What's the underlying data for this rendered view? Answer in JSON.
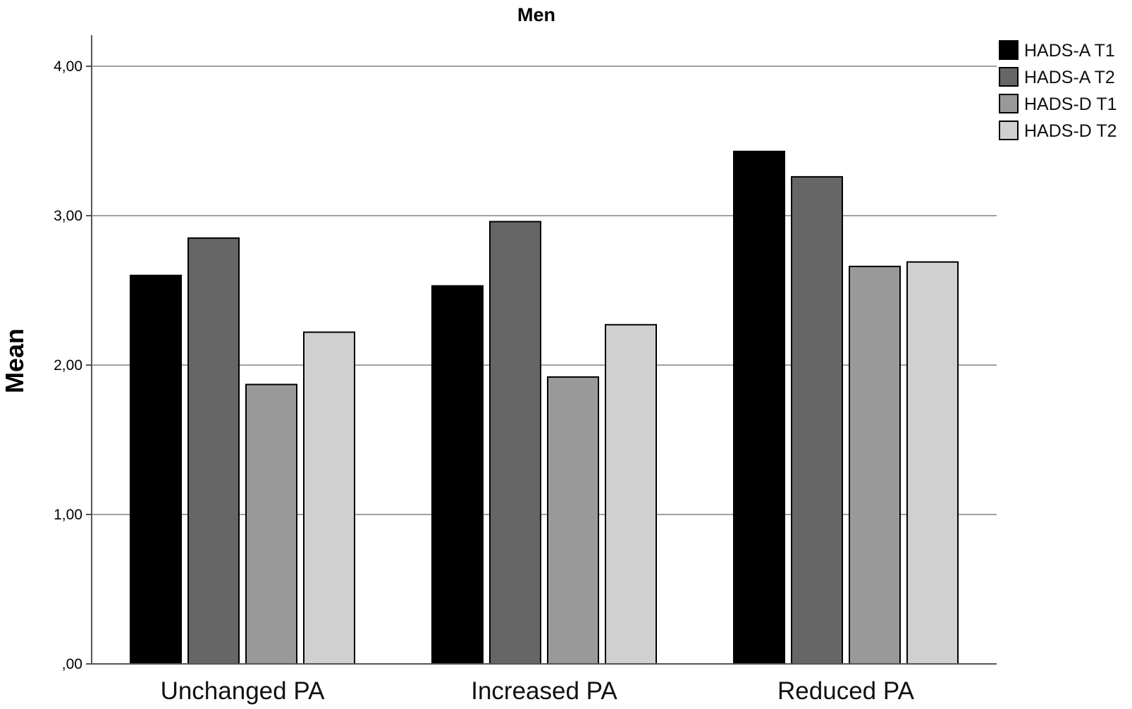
{
  "chart_data": {
    "type": "bar",
    "title": "Men",
    "xlabel": "",
    "ylabel": "Mean",
    "ylim": [
      0,
      4.2
    ],
    "yticks": [
      0,
      1,
      2,
      3,
      4
    ],
    "ytick_labels": [
      ",00",
      "1,00",
      "2,00",
      "3,00",
      "4,00"
    ],
    "grid": true,
    "legend_position": "top-right",
    "categories": [
      "Unchanged PA",
      "Increased PA",
      "Reduced PA"
    ],
    "series": [
      {
        "name": "HADS-A T1",
        "color": "#000000",
        "values": [
          2.6,
          2.53,
          3.43
        ]
      },
      {
        "name": "HADS-A T2",
        "color": "#666666",
        "values": [
          2.85,
          2.96,
          3.26
        ]
      },
      {
        "name": "HADS-D T1",
        "color": "#999999",
        "values": [
          1.87,
          1.92,
          2.66
        ]
      },
      {
        "name": "HADS-D T2",
        "color": "#d0d0d0",
        "values": [
          2.22,
          2.27,
          2.69
        ]
      }
    ]
  }
}
